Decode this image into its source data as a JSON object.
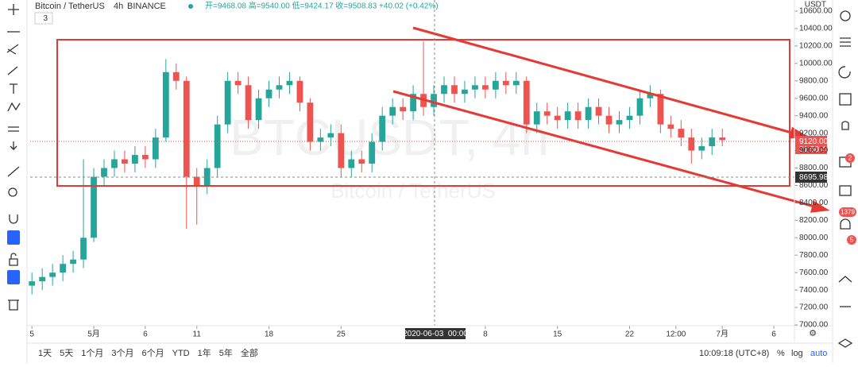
{
  "header": {
    "symbol": "Bitcoin / TetherUS",
    "interval": "4h",
    "exchange": "BINANCE",
    "ohlc": "开=9468.08 高=9540.00 低=9424.17 收=9508.83 +40.02 (+0.42%)",
    "indicators": "3"
  },
  "watermark": {
    "big": "BTCUSDT, 4h",
    "small": "Bitcoin / TetherUS"
  },
  "price_axis": {
    "currency": "USDT",
    "last_price": "9120.00",
    "countdown": "01:50:41",
    "crosshair_price": "8695.98"
  },
  "crosshair_time": "2020-06-03  00:00",
  "bottom_bar": {
    "ranges": [
      "1天",
      "5天",
      "1个月",
      "3个月",
      "6个月",
      "YTD",
      "1年",
      "5年",
      "全部"
    ],
    "clock": "10:09:18 (UTC+8)",
    "percent": "%",
    "log": "log",
    "auto": "auto"
  },
  "sidebar_badges": [
    "2",
    "1379",
    "5"
  ],
  "chart_data": {
    "type": "candlestick",
    "up_color": "#26a69a",
    "down_color": "#ef5350",
    "x": [
      -6,
      -5,
      -4,
      -3,
      -2,
      -1,
      0,
      1,
      2,
      3,
      4,
      5,
      6,
      7,
      8,
      9,
      10,
      11,
      12,
      13,
      14,
      15,
      16,
      17,
      18,
      19,
      20,
      21,
      22,
      23,
      24,
      25,
      26,
      27,
      28,
      29,
      30,
      31,
      32,
      33,
      34,
      35,
      36,
      37,
      38,
      39,
      40,
      41,
      42,
      43,
      44,
      45,
      46,
      47,
      48,
      49,
      50,
      51,
      52,
      53,
      54,
      55,
      56,
      57,
      58,
      59,
      60,
      61
    ],
    "open": [
      7450,
      7500,
      7550,
      7600,
      7700,
      7750,
      8000,
      8700,
      8800,
      8900,
      8850,
      8950,
      8900,
      9150,
      9900,
      9800,
      8700,
      8600,
      8800,
      9300,
      9800,
      9750,
      9350,
      9600,
      9700,
      9750,
      9800,
      9550,
      9100,
      9150,
      9200,
      8800,
      8900,
      8850,
      9100,
      9400,
      9500,
      9450,
      9650,
      9500,
      9650,
      9750,
      9650,
      9700,
      9750,
      9700,
      9800,
      9750,
      9800,
      9300,
      9450,
      9400,
      9350,
      9450,
      9350,
      9500,
      9400,
      9300,
      9350,
      9400,
      9600,
      9650,
      9300,
      9250,
      9150,
      9000,
      9050,
      9150
    ],
    "high": [
      7600,
      7650,
      7700,
      7800,
      7850,
      8900,
      8800,
      8900,
      9000,
      9000,
      9050,
      9050,
      9250,
      10050,
      10000,
      9850,
      8800,
      8900,
      9400,
      9900,
      9900,
      9850,
      9700,
      9800,
      9850,
      9900,
      9850,
      9600,
      9250,
      9300,
      9300,
      9000,
      9000,
      9200,
      9500,
      9600,
      9600,
      9750,
      10250,
      9750,
      9850,
      9850,
      9800,
      9850,
      9850,
      9900,
      9900,
      9900,
      9850,
      9550,
      9550,
      9500,
      9550,
      9550,
      9600,
      9600,
      9500,
      9450,
      9500,
      9700,
      9750,
      9700,
      9400,
      9350,
      9250,
      9150,
      9250,
      9250
    ],
    "low": [
      7350,
      7400,
      7450,
      7500,
      7600,
      7650,
      7950,
      8600,
      8700,
      8750,
      8750,
      8800,
      8800,
      9100,
      9700,
      8100,
      8150,
      8500,
      8700,
      9200,
      9650,
      9250,
      9250,
      9500,
      9600,
      9650,
      9450,
      9000,
      9000,
      9050,
      8700,
      8700,
      8750,
      8750,
      9000,
      9300,
      9350,
      9350,
      9400,
      9400,
      9550,
      9550,
      9550,
      9600,
      9600,
      9600,
      9650,
      9650,
      9200,
      9200,
      9300,
      9250,
      9250,
      9250,
      9250,
      9300,
      9200,
      9200,
      9250,
      9300,
      9500,
      9200,
      9150,
      9050,
      8850,
      8900,
      8950,
      9050
    ],
    "close": [
      7500,
      7550,
      7600,
      7700,
      7750,
      8000,
      8700,
      8800,
      8900,
      8850,
      8950,
      8900,
      9150,
      9900,
      9800,
      8700,
      8600,
      8800,
      9300,
      9800,
      9750,
      9350,
      9600,
      9700,
      9750,
      9800,
      9550,
      9100,
      9150,
      9200,
      8800,
      8900,
      8850,
      9100,
      9400,
      9500,
      9450,
      9650,
      9500,
      9650,
      9750,
      9650,
      9700,
      9750,
      9700,
      9800,
      9750,
      9800,
      9300,
      9450,
      9400,
      9350,
      9450,
      9350,
      9500,
      9400,
      9300,
      9350,
      9400,
      9600,
      9650,
      9300,
      9250,
      9150,
      9000,
      9050,
      9150,
      9120
    ],
    "ylim": [
      7000,
      10600
    ],
    "yticks": [
      {
        "value": 7000,
        "label": "7000.00"
      },
      {
        "value": 7200,
        "label": "7200.00"
      },
      {
        "value": 7400,
        "label": "7400.00"
      },
      {
        "value": 7600,
        "label": "7600.00"
      },
      {
        "value": 7800,
        "label": "7800.00"
      },
      {
        "value": 8000,
        "label": "8000.00"
      },
      {
        "value": 8200,
        "label": "8200.00"
      },
      {
        "value": 8400,
        "label": "8400.00"
      },
      {
        "value": 8600,
        "label": "8600.00"
      },
      {
        "value": 8800,
        "label": "8800.00"
      },
      {
        "value": 9000,
        "label": "9000.00"
      },
      {
        "value": 9200,
        "label": "9200.00"
      },
      {
        "value": 9400,
        "label": "9400.00"
      },
      {
        "value": 9600,
        "label": "9600.00"
      },
      {
        "value": 9800,
        "label": "9800.00"
      },
      {
        "value": 10000,
        "label": "10000.00"
      },
      {
        "value": 10200,
        "label": "10200.00"
      },
      {
        "value": 10400,
        "label": "10400.00"
      },
      {
        "value": 10600,
        "label": "10600.00"
      }
    ],
    "xlim": [
      -6.17,
      68
    ],
    "xticks": [
      {
        "value": -6,
        "label": "5"
      },
      {
        "value": 0,
        "label": "5月"
      },
      {
        "value": 5,
        "label": "6"
      },
      {
        "value": 10,
        "label": "11"
      },
      {
        "value": 17,
        "label": "18"
      },
      {
        "value": 24,
        "label": "25"
      },
      {
        "value": 38,
        "label": "8"
      },
      {
        "value": 45,
        "label": "15"
      },
      {
        "value": 52,
        "label": "22"
      },
      {
        "value": 56.5,
        "label": "12:00"
      },
      {
        "value": 61,
        "label": "7月"
      },
      {
        "value": 66,
        "label": "6"
      }
    ]
  }
}
